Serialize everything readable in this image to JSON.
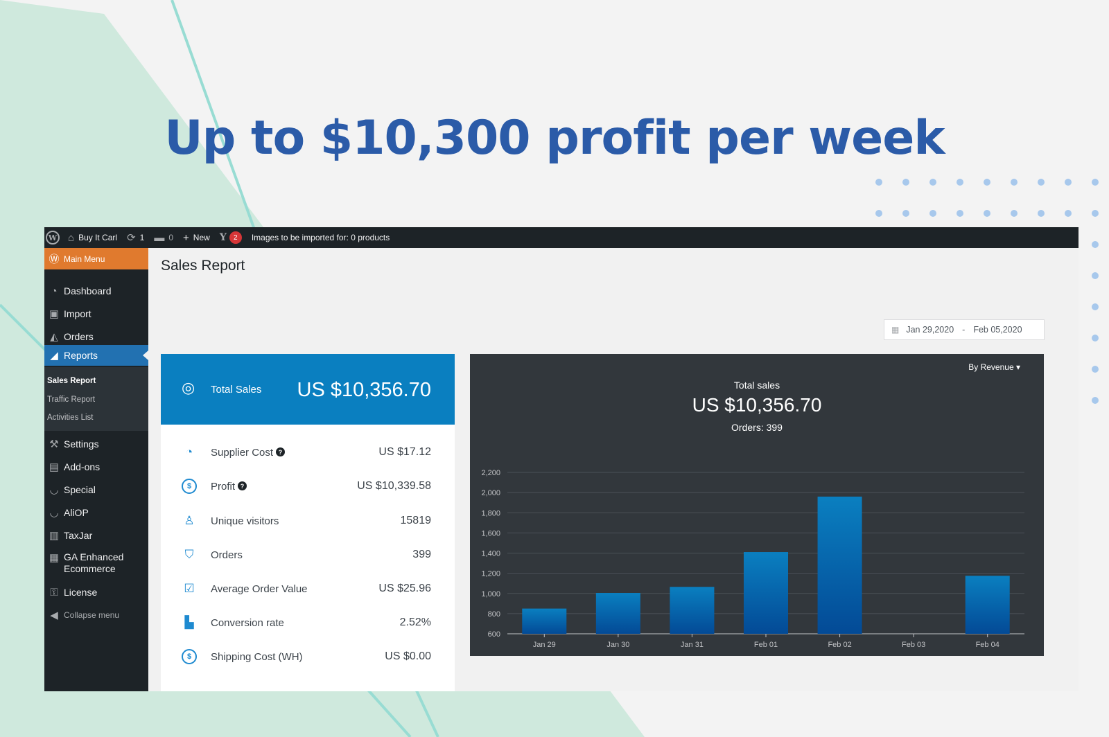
{
  "headline": "Up to $10,300 profit per week",
  "colors": {
    "brand_blue": "#2b5ba8",
    "accent_orange": "#e07a2e",
    "active_blue": "#2271b1",
    "bar_blue": "#0a7fc0"
  },
  "adminbar": {
    "site_name": "Buy It Carl",
    "updates_count": "1",
    "comments_count": "0",
    "new_label": "New",
    "yoast_count": "2",
    "notice": "Images to be imported for: 0 products"
  },
  "sidebar": {
    "main_menu": "Main Menu",
    "items": [
      {
        "label": "Dashboard",
        "icon": "dashboard-icon"
      },
      {
        "label": "Import",
        "icon": "shopping-bag-icon"
      },
      {
        "label": "Orders",
        "icon": "area-chart-icon"
      },
      {
        "label": "Reports",
        "icon": "reports-icon"
      },
      {
        "label": "Settings",
        "icon": "wrench-icon"
      },
      {
        "label": "Add-ons",
        "icon": "addons-icon"
      },
      {
        "label": "Special",
        "icon": "smile-icon"
      },
      {
        "label": "AliOP",
        "icon": "smile-icon"
      },
      {
        "label": "TaxJar",
        "icon": "taxjar-icon"
      },
      {
        "label": "GA Enhanced Ecommerce",
        "icon": "ga-icon"
      },
      {
        "label": "License",
        "icon": "key-icon"
      }
    ],
    "submenu": [
      "Sales Report",
      "Traffic Report",
      "Activities List"
    ],
    "collapse": "Collapse menu"
  },
  "page_title": "Sales Report",
  "date_range": {
    "from": "Jan 29,2020",
    "sep": "-",
    "to": "Feb 05,2020"
  },
  "stats": {
    "total_label": "Total Sales",
    "total_value": "US $10,356.70",
    "rows": [
      {
        "label": "Supplier Cost",
        "value": "US $17.12",
        "help": "?"
      },
      {
        "label": "Profit",
        "value": "US $10,339.58",
        "help": "?"
      },
      {
        "label": "Unique visitors",
        "value": "15819"
      },
      {
        "label": "Orders",
        "value": "399"
      },
      {
        "label": "Average Order Value",
        "value": "US $25.96"
      },
      {
        "label": "Conversion rate",
        "value": "2.52%"
      },
      {
        "label": "Shipping Cost (WH)",
        "value": "US $0.00"
      }
    ]
  },
  "chart_panel": {
    "sort_label": "By Revenue",
    "title": "Total sales",
    "total": "US $10,356.70",
    "orders": "Orders: 399"
  },
  "chart_data": {
    "type": "bar",
    "categories": [
      "Jan 29",
      "Jan 30",
      "Jan 31",
      "Feb 01",
      "Feb 02",
      "Feb 03",
      "Feb 04"
    ],
    "values": [
      850,
      1005,
      1065,
      1410,
      1960,
      null,
      1175
    ],
    "yticks": [
      600,
      800,
      1000,
      1200,
      1400,
      1600,
      1800,
      2000,
      2200
    ],
    "ylim": [
      600,
      2200
    ],
    "grid": true
  }
}
